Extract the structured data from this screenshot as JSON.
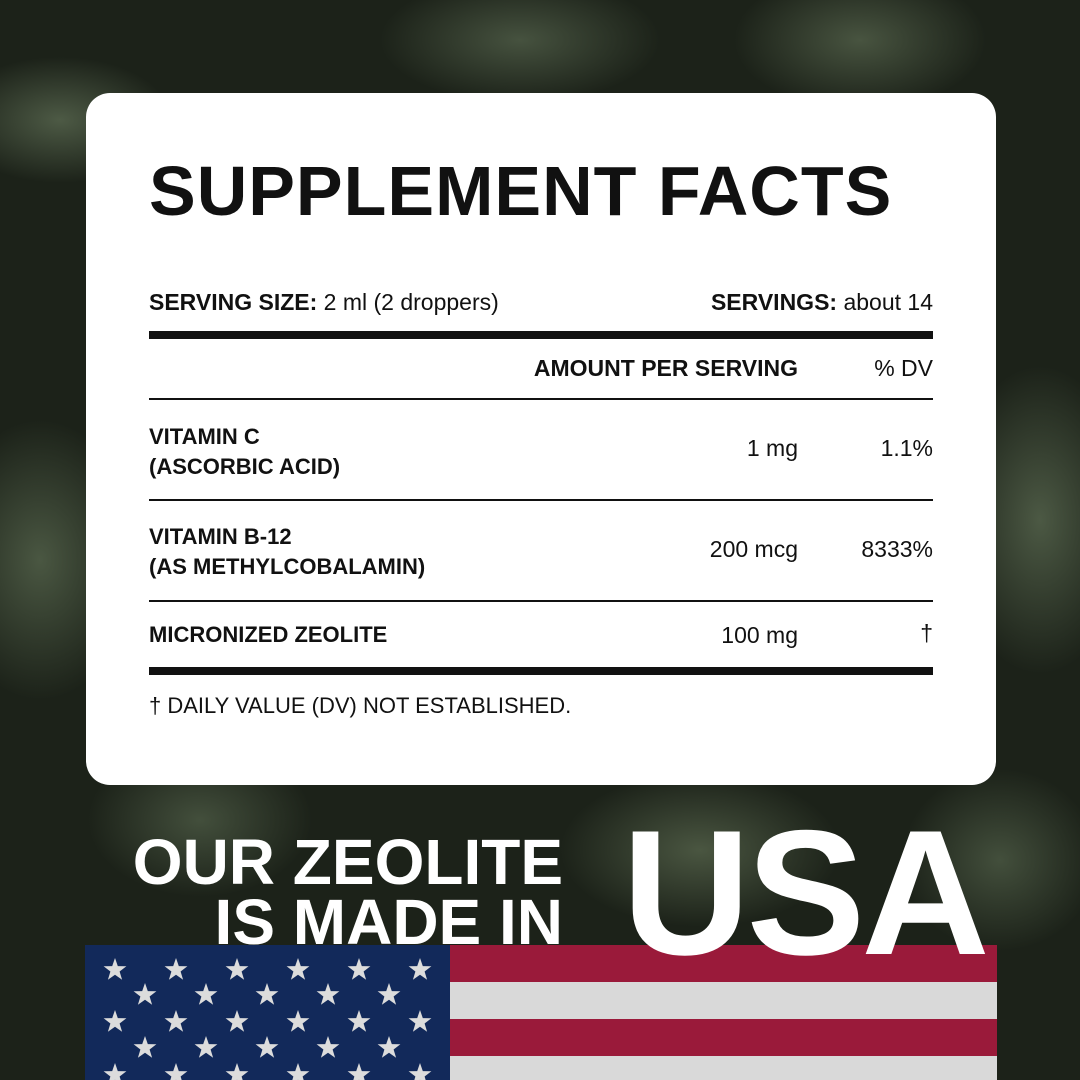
{
  "panel": {
    "title": "SUPPLEMENT FACTS",
    "serving_size_label": "SERVING SIZE:",
    "serving_size_value": "2 ml (2 droppers)",
    "servings_label": "SERVINGS:",
    "servings_value": "about 14",
    "col_amount": "AMOUNT PER SERVING",
    "col_dv": "% DV",
    "rows": [
      {
        "name": "VITAMIN C",
        "sub": "(ASCORBIC ACID)",
        "amount": "1 mg",
        "dv": "1.1%"
      },
      {
        "name": "VITAMIN B-12",
        "sub": "(AS METHYLCOBALAMIN)",
        "amount": "200 mcg",
        "dv": "8333%"
      },
      {
        "name": "MICRONIZED ZEOLITE",
        "sub": "",
        "amount": "100 mg",
        "dv": "†"
      }
    ],
    "footnote": "† DAILY VALUE (DV) NOT ESTABLISHED."
  },
  "banner": {
    "line1": "OUR ZEOLITE",
    "line2": "IS MADE IN",
    "country": "USA"
  },
  "colors": {
    "flag_red": "#9a1a3a",
    "flag_blue": "#12295a",
    "flag_white": "#d9d9d9"
  }
}
